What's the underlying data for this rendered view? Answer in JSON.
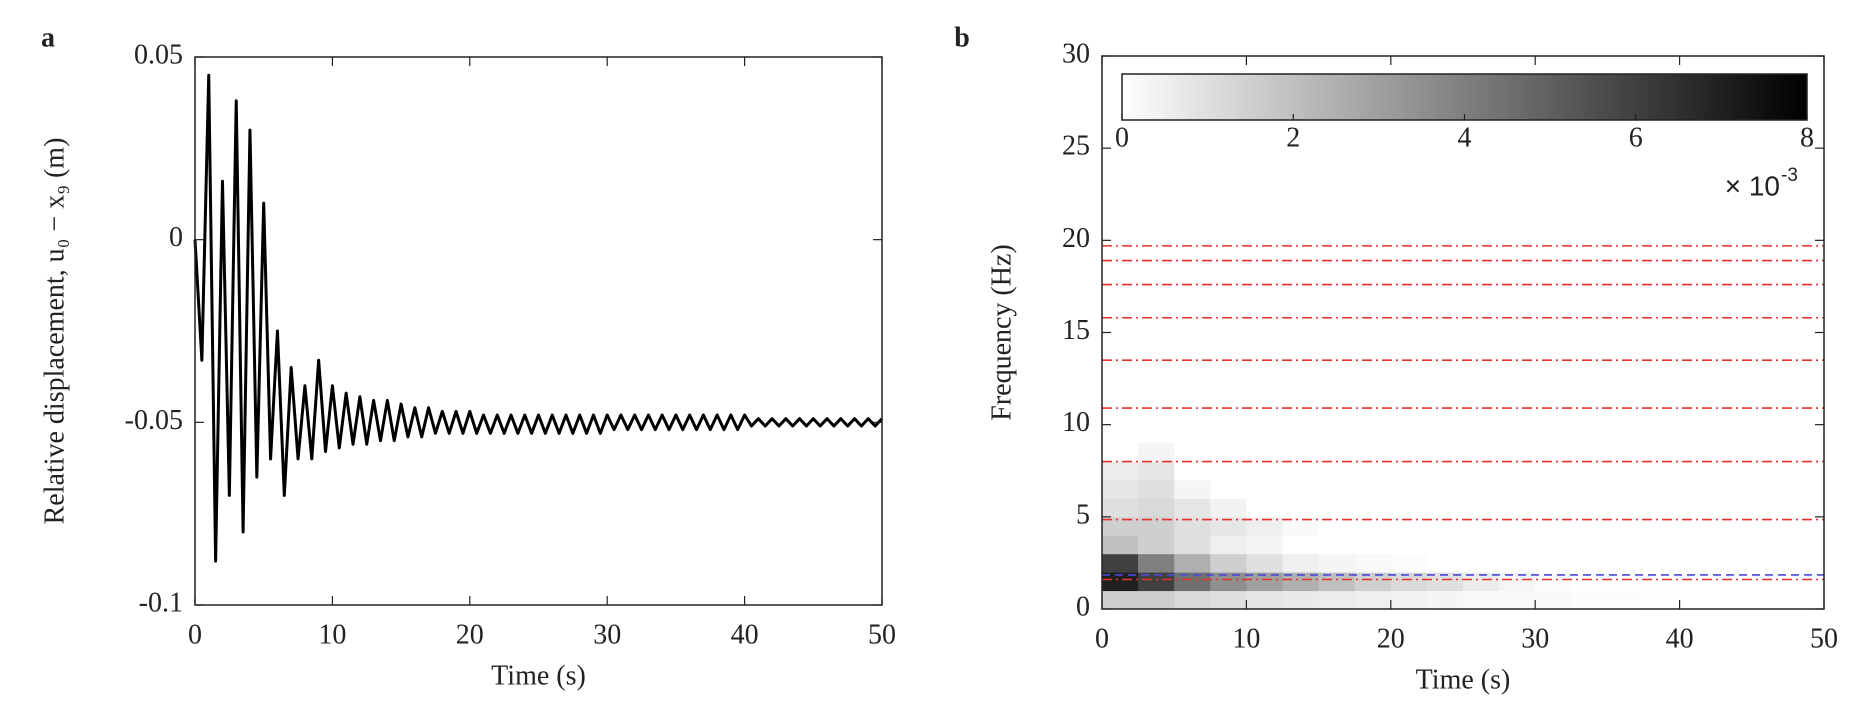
{
  "chart_data": [
    {
      "type": "line",
      "panel_label": "a",
      "xlabel": "Time (s)",
      "ylabel": "Relative displacement, u₀ − x₉ (m)",
      "xlim": [
        0,
        50
      ],
      "ylim": [
        -0.1,
        0.05
      ],
      "xticks": [
        0,
        10,
        20,
        30,
        40,
        50
      ],
      "yticks": [
        -0.1,
        -0.05,
        0,
        0.05
      ],
      "color": "#000000",
      "x": [
        0,
        0.5,
        1,
        1.5,
        2,
        2.5,
        3,
        3.5,
        4,
        4.5,
        5,
        5.5,
        6,
        6.5,
        7,
        7.5,
        8,
        8.5,
        9,
        9.5,
        10,
        10.5,
        11,
        11.5,
        12,
        12.5,
        13,
        13.5,
        14,
        14.5,
        15,
        15.5,
        16,
        16.5,
        17,
        17.5,
        18,
        18.5,
        19,
        19.5,
        20,
        20.5,
        21,
        21.5,
        22,
        22.5,
        23,
        23.5,
        24,
        24.5,
        25,
        25.5,
        26,
        26.5,
        27,
        27.5,
        28,
        28.5,
        29,
        29.5,
        30,
        30.5,
        31,
        31.5,
        32,
        32.5,
        33,
        33.5,
        34,
        34.5,
        35,
        35.5,
        36,
        36.5,
        37,
        37.5,
        38,
        38.5,
        39,
        39.5,
        40,
        40.5,
        41,
        41.5,
        42,
        42.5,
        43,
        43.5,
        44,
        44.5,
        45,
        45.5,
        46,
        46.5,
        47,
        47.5,
        48,
        48.5,
        49,
        49.5,
        50
      ],
      "values": [
        0,
        -0.033,
        0.045,
        -0.088,
        0.016,
        -0.07,
        0.038,
        -0.08,
        0.03,
        -0.065,
        0.01,
        -0.06,
        -0.025,
        -0.07,
        -0.035,
        -0.06,
        -0.04,
        -0.06,
        -0.033,
        -0.058,
        -0.04,
        -0.057,
        -0.042,
        -0.056,
        -0.043,
        -0.056,
        -0.044,
        -0.055,
        -0.044,
        -0.055,
        -0.045,
        -0.054,
        -0.046,
        -0.054,
        -0.046,
        -0.053,
        -0.047,
        -0.053,
        -0.047,
        -0.053,
        -0.047,
        -0.053,
        -0.048,
        -0.053,
        -0.048,
        -0.053,
        -0.048,
        -0.053,
        -0.048,
        -0.053,
        -0.048,
        -0.053,
        -0.048,
        -0.053,
        -0.048,
        -0.053,
        -0.048,
        -0.053,
        -0.048,
        -0.053,
        -0.048,
        -0.052,
        -0.048,
        -0.052,
        -0.048,
        -0.052,
        -0.048,
        -0.052,
        -0.048,
        -0.052,
        -0.048,
        -0.052,
        -0.048,
        -0.052,
        -0.048,
        -0.052,
        -0.048,
        -0.052,
        -0.048,
        -0.052,
        -0.048,
        -0.051,
        -0.049,
        -0.051,
        -0.049,
        -0.051,
        -0.049,
        -0.051,
        -0.049,
        -0.051,
        -0.049,
        -0.051,
        -0.049,
        -0.051,
        -0.049,
        -0.051,
        -0.049,
        -0.051,
        -0.049,
        -0.051,
        -0.049
      ]
    },
    {
      "type": "heatmap",
      "panel_label": "b",
      "xlabel": "Time (s)",
      "ylabel": "Frequency (Hz)",
      "xlim": [
        0,
        50
      ],
      "ylim": [
        0,
        30
      ],
      "xticks": [
        0,
        10,
        20,
        30,
        40,
        50
      ],
      "yticks": [
        0,
        5,
        10,
        15,
        20,
        25,
        30
      ],
      "bins_x": [
        0,
        2.5,
        5,
        7.5,
        10,
        12.5,
        15,
        17.5,
        20,
        22.5,
        25,
        27.5,
        30,
        32.5,
        35,
        37.5,
        40
      ],
      "bins_y": [
        0,
        1,
        2,
        3,
        4,
        5,
        6,
        7,
        8,
        9
      ],
      "z": [
        [
          1.5,
          1.5,
          1.2,
          1,
          0.8,
          0.7,
          0.6,
          0.5,
          0.4,
          0.3,
          0.2,
          0.2,
          0.15,
          0.1,
          0.1,
          0.05
        ],
        [
          7,
          6,
          4.5,
          3.5,
          3,
          2.5,
          2,
          1.5,
          1.2,
          1,
          0.6,
          0.3,
          0.1,
          0,
          0,
          0
        ],
        [
          6,
          4,
          2.5,
          1.5,
          1,
          0.5,
          0.3,
          0.2,
          0.1,
          0,
          0,
          0,
          0,
          0,
          0,
          0
        ],
        [
          2,
          1.5,
          1,
          0.5,
          0.3,
          0,
          0,
          0,
          0,
          0,
          0,
          0,
          0,
          0,
          0,
          0
        ],
        [
          1.5,
          1.5,
          1,
          0.8,
          0.5,
          0.2,
          0,
          0,
          0,
          0,
          0,
          0,
          0,
          0,
          0,
          0
        ],
        [
          1,
          1.2,
          0.8,
          0.4,
          0,
          0,
          0,
          0,
          0,
          0,
          0,
          0,
          0,
          0,
          0,
          0
        ],
        [
          0.8,
          1,
          0.3,
          0,
          0,
          0,
          0,
          0,
          0,
          0,
          0,
          0,
          0,
          0,
          0,
          0
        ],
        [
          0.6,
          0.8,
          0,
          0,
          0,
          0,
          0,
          0,
          0,
          0,
          0,
          0,
          0,
          0,
          0,
          0
        ],
        [
          0,
          0.3,
          0,
          0,
          0,
          0,
          0,
          0,
          0,
          0,
          0,
          0,
          0,
          0,
          0,
          0
        ]
      ],
      "clim": [
        0,
        8
      ],
      "colorbar_ticks": [
        0,
        2,
        4,
        6,
        8
      ],
      "colorbar_multiplier": "× 10",
      "colorbar_exponent": "-3",
      "hlines": [
        {
          "values": [
            1.6,
            4.85,
            8.0,
            10.9,
            13.5,
            15.8,
            17.6,
            18.9,
            19.7
          ],
          "color": "#e8302a",
          "style": "dashdot"
        },
        {
          "values": [
            1.85
          ],
          "color": "#4a4ad8",
          "style": "dashed"
        }
      ]
    }
  ]
}
